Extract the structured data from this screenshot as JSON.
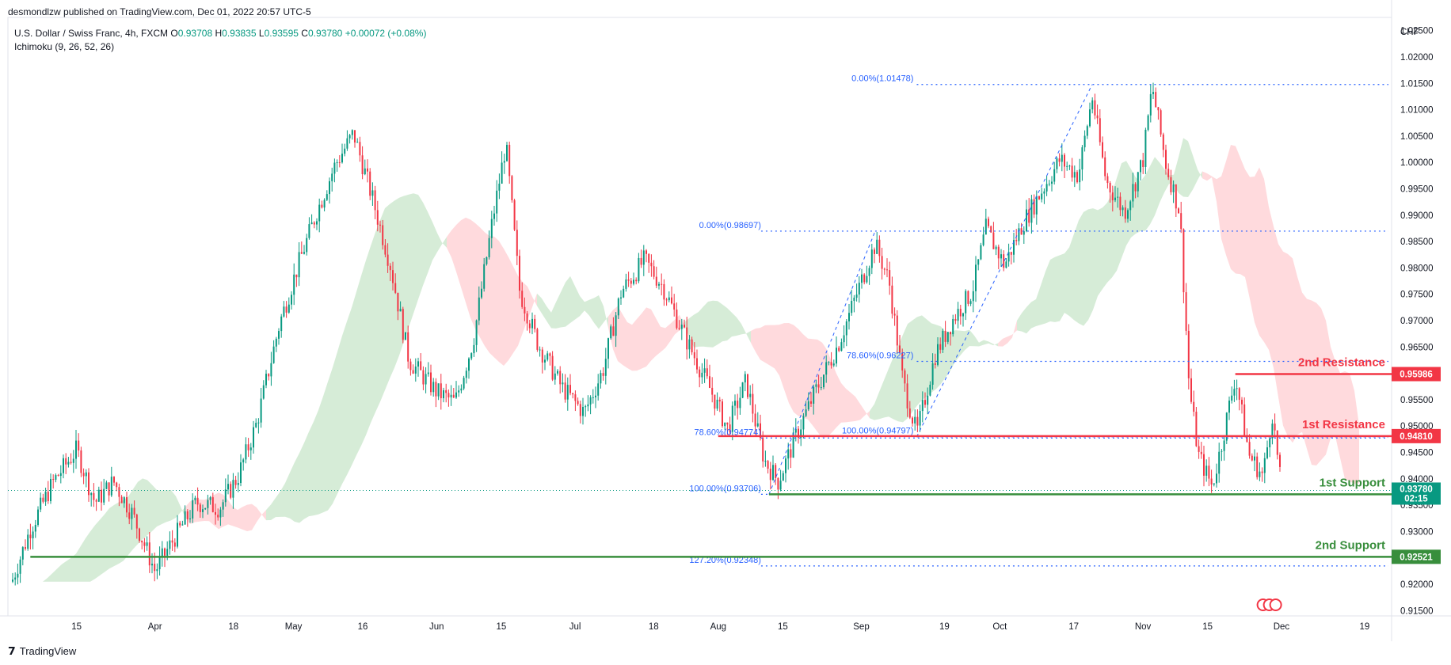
{
  "publish_line": "desmondlzw published on TradingView.com, Dec 01, 2022 20:57 UTC-5",
  "legend": {
    "symbol": "U.S. Dollar / Swiss Franc, 4h, FXCM",
    "open_label": "O",
    "open": "0.93708",
    "high_label": "H",
    "high": "0.93835",
    "low_label": "L",
    "low": "0.93595",
    "close_label": "C",
    "close": "0.93780",
    "change": "+0.00072 (+0.08%)",
    "indicator": "Ichimoku (9, 26, 52, 26)"
  },
  "footer": {
    "brand": "TradingView",
    "logo_icon": "tradingview-logo-icon"
  },
  "colors": {
    "up": "#089981",
    "down": "#f23645",
    "fib": "#2962ff",
    "resistance": "#f23645",
    "support": "#388e3c",
    "cloud_up": "#c8e6c9",
    "cloud_down": "#ffcdd2"
  },
  "chart_data": {
    "type": "candlestick",
    "currency_label": "CHF",
    "ylim": [
      0.914,
      1.0275
    ],
    "y_ticks": [
      "1.02500",
      "1.02000",
      "1.01500",
      "1.01000",
      "1.00500",
      "1.00000",
      "0.99500",
      "0.99000",
      "0.98500",
      "0.98000",
      "0.97500",
      "0.97000",
      "0.96500",
      "0.96000",
      "0.95500",
      "0.95000",
      "0.94500",
      "0.94000",
      "0.93500",
      "0.93000",
      "0.92500",
      "0.92000",
      "0.91500"
    ],
    "x_ticks": [
      "15",
      "Apr",
      "18",
      "May",
      "16",
      "Jun",
      "15",
      "Jul",
      "18",
      "Aug",
      "15",
      "Sep",
      "19",
      "Oct",
      "17",
      "Nov",
      "15",
      "Dec",
      "19"
    ],
    "price_path": [
      [
        "Mar 01",
        0.9205
      ],
      [
        "Mar 05",
        0.9305
      ],
      [
        "Mar 10",
        0.9395
      ],
      [
        "Mar 15",
        0.9455
      ],
      [
        "Mar 19",
        0.9355
      ],
      [
        "Mar 23",
        0.9395
      ],
      [
        "Mar 27",
        0.9335
      ],
      [
        "Apr 01",
        0.9225
      ],
      [
        "Apr 05",
        0.9285
      ],
      [
        "Apr 10",
        0.9355
      ],
      [
        "Apr 15",
        0.9345
      ],
      [
        "Apr 19",
        0.9405
      ],
      [
        "Apr 23",
        0.9505
      ],
      [
        "Apr 28",
        0.9695
      ],
      [
        "May 02",
        0.9805
      ],
      [
        "May 06",
        0.9905
      ],
      [
        "May 10",
        0.9995
      ],
      [
        "May 14",
        1.0055
      ],
      [
        "May 18",
        0.9935
      ],
      [
        "May 22",
        0.9805
      ],
      [
        "May 26",
        0.9625
      ],
      [
        "Jun 01",
        0.9565
      ],
      [
        "Jun 05",
        0.9545
      ],
      [
        "Jun 09",
        0.9665
      ],
      [
        "Jun 13",
        0.9885
      ],
      [
        "Jun 16",
        1.0035
      ],
      [
        "Jun 19",
        0.9755
      ],
      [
        "Jun 23",
        0.9655
      ],
      [
        "Jun 28",
        0.9575
      ],
      [
        "Jul 03",
        0.9525
      ],
      [
        "Jul 07",
        0.9605
      ],
      [
        "Jul 11",
        0.9755
      ],
      [
        "Jul 16",
        0.9815
      ],
      [
        "Jul 20",
        0.9765
      ],
      [
        "Jul 25",
        0.9665
      ],
      [
        "Jul 30",
        0.9575
      ],
      [
        "Aug 03",
        0.9495
      ],
      [
        "Aug 07",
        0.9585
      ],
      [
        "Aug 11",
        0.9435
      ],
      [
        "Aug 14",
        0.9395
      ],
      [
        "Aug 18",
        0.9485
      ],
      [
        "Aug 22",
        0.9565
      ],
      [
        "Aug 27",
        0.9655
      ],
      [
        "Sep 01",
        0.9775
      ],
      [
        "Sep 04",
        0.9845
      ],
      [
        "Sep 07",
        0.9775
      ],
      [
        "Sep 10",
        0.9585
      ],
      [
        "Sep 13",
        0.9485
      ],
      [
        "Sep 17",
        0.9635
      ],
      [
        "Sep 21",
        0.9705
      ],
      [
        "Sep 25",
        0.9755
      ],
      [
        "Sep 28",
        0.9875
      ],
      [
        "Oct 02",
        0.9805
      ],
      [
        "Oct 06",
        0.9885
      ],
      [
        "Oct 10",
        0.9945
      ],
      [
        "Oct 14",
        1.0005
      ],
      [
        "Oct 18",
        0.9975
      ],
      [
        "Oct 21",
        1.0125
      ],
      [
        "Oct 24",
        0.9965
      ],
      [
        "Oct 28",
        0.9905
      ],
      [
        "Nov 01",
        1.0005
      ],
      [
        "Nov 03",
        1.0145
      ],
      [
        "Nov 06",
        0.9995
      ],
      [
        "Nov 09",
        0.9905
      ],
      [
        "Nov 11",
        0.9575
      ],
      [
        "Nov 13",
        0.9445
      ],
      [
        "Nov 16",
        0.9385
      ],
      [
        "Nov 18",
        0.9465
      ],
      [
        "Nov 21",
        0.9595
      ],
      [
        "Nov 24",
        0.9445
      ],
      [
        "Nov 27",
        0.9405
      ],
      [
        "Nov 29",
        0.9525
      ],
      [
        "Dec 01",
        0.9378
      ]
    ],
    "levels": [
      {
        "label": "2nd Resistance",
        "value": 0.95986,
        "badge": "0.95986",
        "kind": "resistance",
        "from": "Nov 21"
      },
      {
        "label": "1st Resistance",
        "value": 0.9481,
        "badge": "0.94810",
        "kind": "resistance",
        "from": "Aug 01"
      },
      {
        "label": "1st Support",
        "value": 0.93706,
        "badge": "0.93706",
        "kind": "support",
        "from": "Aug 12"
      },
      {
        "label": "2nd Support",
        "value": 0.92521,
        "badge": "0.92521",
        "kind": "support",
        "from": "Mar 05"
      }
    ],
    "current_price": {
      "value": 0.9378,
      "badge": "0.93780",
      "countdown": "02:15"
    },
    "fib_a": {
      "levels": [
        {
          "text": "0.00%(0.98697)",
          "value": 0.98697
        },
        {
          "text": "78.60%(0.94774)",
          "value": 0.94774
        },
        {
          "text": "100.00%(0.93706)",
          "value": 0.93706
        },
        {
          "text": "127.20%(0.92348)",
          "value": 0.92348
        }
      ]
    },
    "fib_b": {
      "levels": [
        {
          "text": "0.00%(1.01478)",
          "value": 1.01478
        },
        {
          "text": "78.60%(0.96227)",
          "value": 0.96227
        },
        {
          "text": "100.00%(0.94797)",
          "value": 0.94797
        }
      ]
    }
  }
}
